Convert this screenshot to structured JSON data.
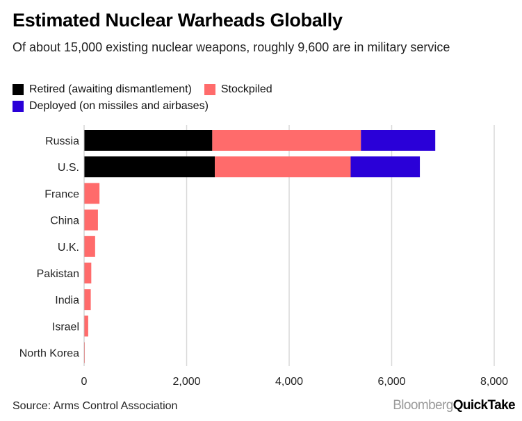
{
  "colors": {
    "retired": "#000000",
    "stockpiled": "#ff6b6b",
    "deployed": "#2a00d8",
    "grid": "#d9d9d9",
    "axis_text": "#222222"
  },
  "footer": {
    "source": "Source: Arms Control Association",
    "brand_part1": "Bloomberg",
    "brand_part2": "QuickTake"
  },
  "chart_data": {
    "type": "bar",
    "orientation": "horizontal",
    "stacked": true,
    "title": "Estimated Nuclear Warheads Globally",
    "subtitle": "Of about 15,000 existing nuclear weapons, roughly 9,600 are in military service",
    "categories": [
      "Russia",
      "U.S.",
      "France",
      "China",
      "U.K.",
      "Pakistan",
      "India",
      "Israel",
      "North Korea"
    ],
    "series": [
      {
        "name": "Retired (awaiting dismantlement)",
        "key": "retired",
        "values": [
          2500,
          2550,
          0,
          0,
          0,
          0,
          0,
          0,
          0
        ]
      },
      {
        "name": "Stockpiled",
        "key": "stockpiled",
        "values": [
          2900,
          2650,
          300,
          270,
          215,
          140,
          130,
          80,
          10
        ]
      },
      {
        "name": "Deployed (on missiles and airbases)",
        "key": "deployed",
        "values": [
          1450,
          1350,
          0,
          0,
          0,
          0,
          0,
          0,
          0
        ]
      }
    ],
    "xlim": [
      0,
      8000
    ],
    "xticks": [
      0,
      2000,
      4000,
      6000,
      8000
    ],
    "xtick_labels": [
      "0",
      "2,000",
      "4,000",
      "6,000",
      "8,000"
    ],
    "grid": true,
    "legend_placement": "top-left"
  }
}
